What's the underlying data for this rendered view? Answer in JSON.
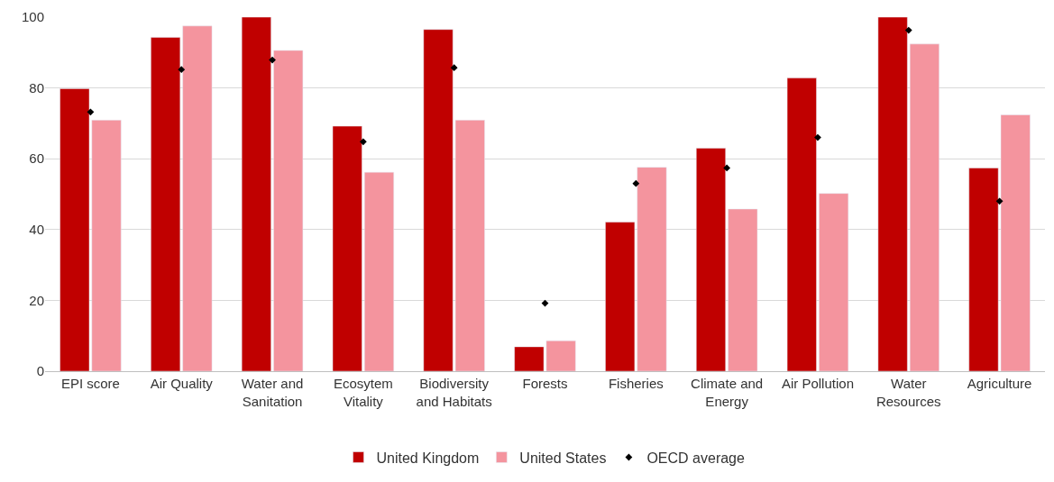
{
  "chart_data": {
    "type": "bar",
    "categories": [
      "EPI score",
      "Air Quality",
      "Water and Sanitation",
      "Ecosytem Vitality",
      "Biodiversity and Habitats",
      "Forests",
      "Fisheries",
      "Climate and Energy",
      "Air Pollution",
      "Water Resources",
      "Agriculture"
    ],
    "series": [
      {
        "name": "United Kingdom",
        "color": "#c00000",
        "values": [
          79.8,
          94.3,
          100,
          69.2,
          96.5,
          6.9,
          42.1,
          63,
          82.8,
          100,
          57.4
        ]
      },
      {
        "name": "United States",
        "color": "#f4949e",
        "values": [
          70.9,
          97.5,
          90.6,
          56.2,
          70.9,
          8.6,
          57.6,
          45.8,
          50.2,
          92.4,
          72.4
        ]
      },
      {
        "name": "OECD average",
        "type": "scatter",
        "marker": "diamond",
        "color": "#000000",
        "values": [
          73.2,
          85.2,
          87.9,
          64.8,
          85.7,
          19.2,
          53,
          57.4,
          66,
          96.3,
          48
        ]
      }
    ],
    "ylim": [
      0,
      100
    ],
    "yticks": [
      0,
      20,
      40,
      60,
      80,
      100
    ],
    "grid": "y",
    "legend": "bottom"
  }
}
